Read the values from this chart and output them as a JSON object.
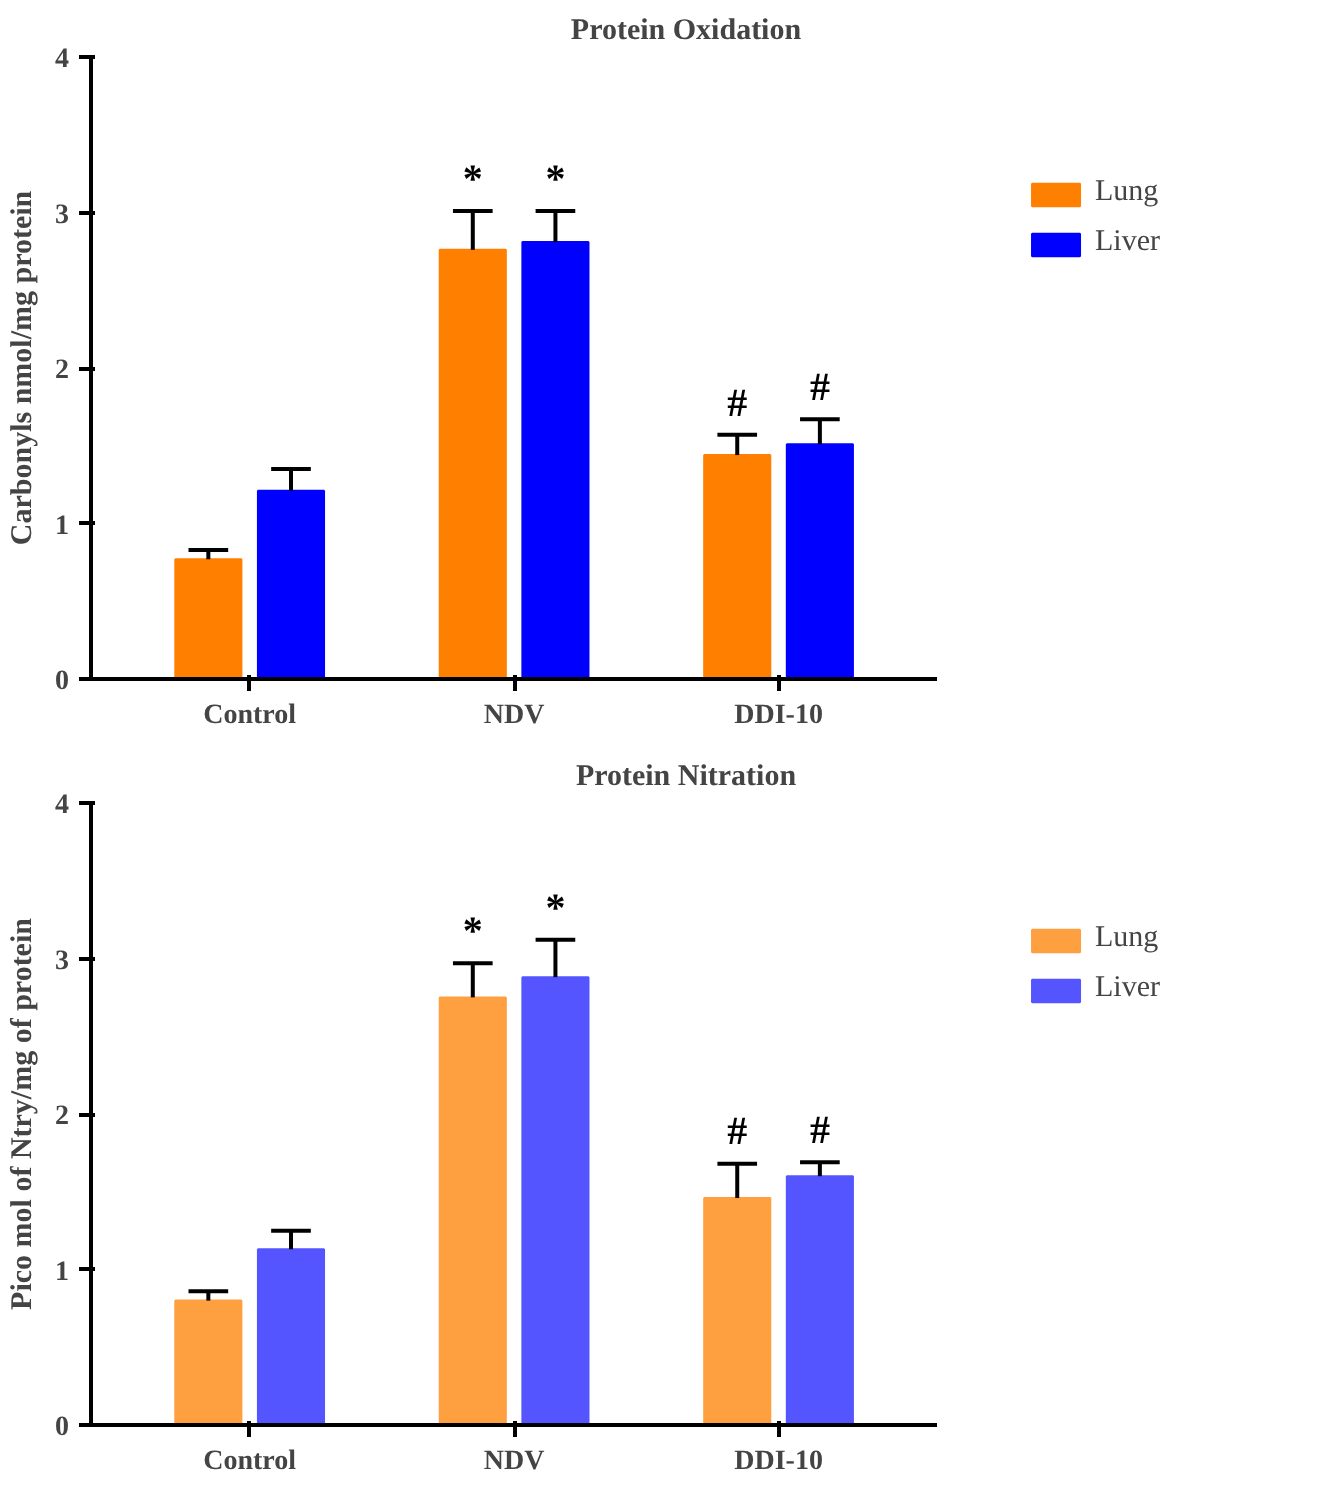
{
  "chart_data": [
    {
      "type": "bar",
      "title": "Protein Oxidation",
      "ylabel": "Carbonyls nmol/mg protein",
      "categories": [
        "Control",
        "NDV",
        "DDI-10"
      ],
      "ylim": [
        0,
        4
      ],
      "yticks": [
        0,
        1,
        2,
        3,
        4
      ],
      "grid": false,
      "legend": "right",
      "series": [
        {
          "name": "Lung",
          "color": "#ff8000",
          "values": [
            0.77,
            2.76,
            1.44
          ],
          "errors": [
            0.06,
            0.25,
            0.13
          ],
          "value_labels": [
            null,
            "*",
            "#"
          ]
        },
        {
          "name": "Liver",
          "color": "#0000ff",
          "values": [
            1.21,
            2.81,
            1.51
          ],
          "errors": [
            0.14,
            0.2,
            0.16
          ],
          "value_labels": [
            null,
            "*",
            "#"
          ]
        }
      ]
    },
    {
      "type": "bar",
      "title": "Protein Nitration",
      "ylabel": "Pico mol of Ntry/mg of protein",
      "categories": [
        "Control",
        "NDV",
        "DDI-10"
      ],
      "ylim": [
        0,
        4
      ],
      "yticks": [
        0,
        1,
        2,
        3,
        4
      ],
      "grid": false,
      "legend": "right",
      "series": [
        {
          "name": "Lung",
          "color": "#ffa040",
          "values": [
            0.8,
            2.75,
            1.46
          ],
          "errors": [
            0.06,
            0.22,
            0.22
          ],
          "value_labels": [
            null,
            "*",
            "#"
          ]
        },
        {
          "name": "Liver",
          "color": "#5555ff",
          "values": [
            1.13,
            2.88,
            1.6
          ],
          "errors": [
            0.12,
            0.24,
            0.09
          ],
          "value_labels": [
            null,
            "*",
            "#"
          ]
        }
      ]
    }
  ]
}
